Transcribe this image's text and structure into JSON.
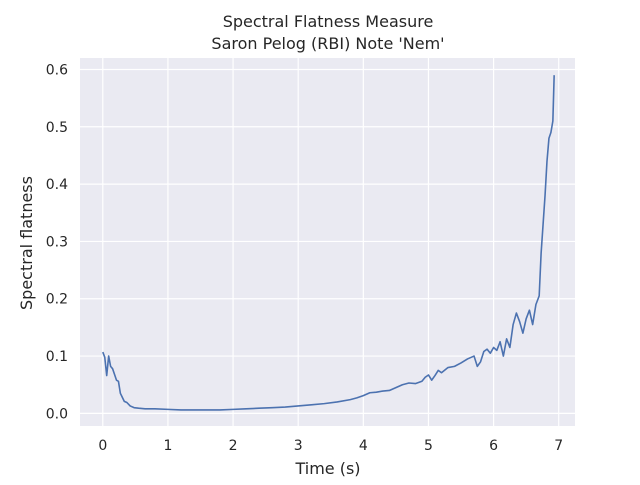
{
  "chart_data": {
    "type": "line",
    "title": "Spectral Flatness Measure",
    "subtitle": "Saron Pelog (RBI) Note 'Nem'",
    "xlabel": "Time (s)",
    "ylabel": "Spectral flatness",
    "xlim": [
      -0.35,
      7.25
    ],
    "ylim": [
      -0.022,
      0.62
    ],
    "xticks": [
      0,
      1,
      2,
      3,
      4,
      5,
      6,
      7
    ],
    "xtick_labels": [
      "0",
      "1",
      "2",
      "3",
      "4",
      "5",
      "6",
      "7"
    ],
    "yticks": [
      0.0,
      0.1,
      0.2,
      0.3,
      0.4,
      0.5,
      0.6
    ],
    "ytick_labels": [
      "0.0",
      "0.1",
      "0.2",
      "0.3",
      "0.4",
      "0.5",
      "0.6"
    ],
    "grid": true,
    "background_color": "#eaeaf2",
    "grid_color": "#ffffff",
    "series": [
      {
        "color": "#4c72b0",
        "x": [
          0.0,
          0.03,
          0.06,
          0.09,
          0.12,
          0.15,
          0.18,
          0.21,
          0.24,
          0.27,
          0.3,
          0.33,
          0.37,
          0.42,
          0.48,
          0.55,
          0.65,
          0.8,
          1.0,
          1.2,
          1.5,
          1.8,
          2.0,
          2.2,
          2.4,
          2.6,
          2.8,
          3.0,
          3.2,
          3.4,
          3.6,
          3.8,
          3.9,
          4.0,
          4.1,
          4.2,
          4.3,
          4.4,
          4.5,
          4.6,
          4.7,
          4.8,
          4.9,
          4.95,
          5.0,
          5.05,
          5.1,
          5.15,
          5.2,
          5.3,
          5.4,
          5.5,
          5.6,
          5.7,
          5.75,
          5.8,
          5.85,
          5.9,
          5.95,
          6.0,
          6.05,
          6.1,
          6.15,
          6.2,
          6.25,
          6.3,
          6.35,
          6.4,
          6.45,
          6.5,
          6.55,
          6.6,
          6.65,
          6.7,
          6.73,
          6.76,
          6.79,
          6.82,
          6.85,
          6.88,
          6.91,
          6.93
        ],
        "y": [
          0.107,
          0.098,
          0.066,
          0.1,
          0.082,
          0.078,
          0.068,
          0.058,
          0.056,
          0.035,
          0.028,
          0.021,
          0.019,
          0.013,
          0.01,
          0.009,
          0.008,
          0.008,
          0.007,
          0.006,
          0.006,
          0.006,
          0.007,
          0.008,
          0.009,
          0.01,
          0.011,
          0.013,
          0.015,
          0.017,
          0.02,
          0.024,
          0.027,
          0.031,
          0.036,
          0.037,
          0.039,
          0.04,
          0.045,
          0.05,
          0.053,
          0.052,
          0.056,
          0.063,
          0.067,
          0.058,
          0.066,
          0.075,
          0.071,
          0.08,
          0.082,
          0.088,
          0.095,
          0.1,
          0.082,
          0.09,
          0.108,
          0.112,
          0.105,
          0.115,
          0.11,
          0.125,
          0.1,
          0.13,
          0.115,
          0.155,
          0.175,
          0.16,
          0.14,
          0.165,
          0.18,
          0.155,
          0.19,
          0.205,
          0.28,
          0.33,
          0.38,
          0.44,
          0.48,
          0.49,
          0.51,
          0.59
        ]
      }
    ]
  }
}
